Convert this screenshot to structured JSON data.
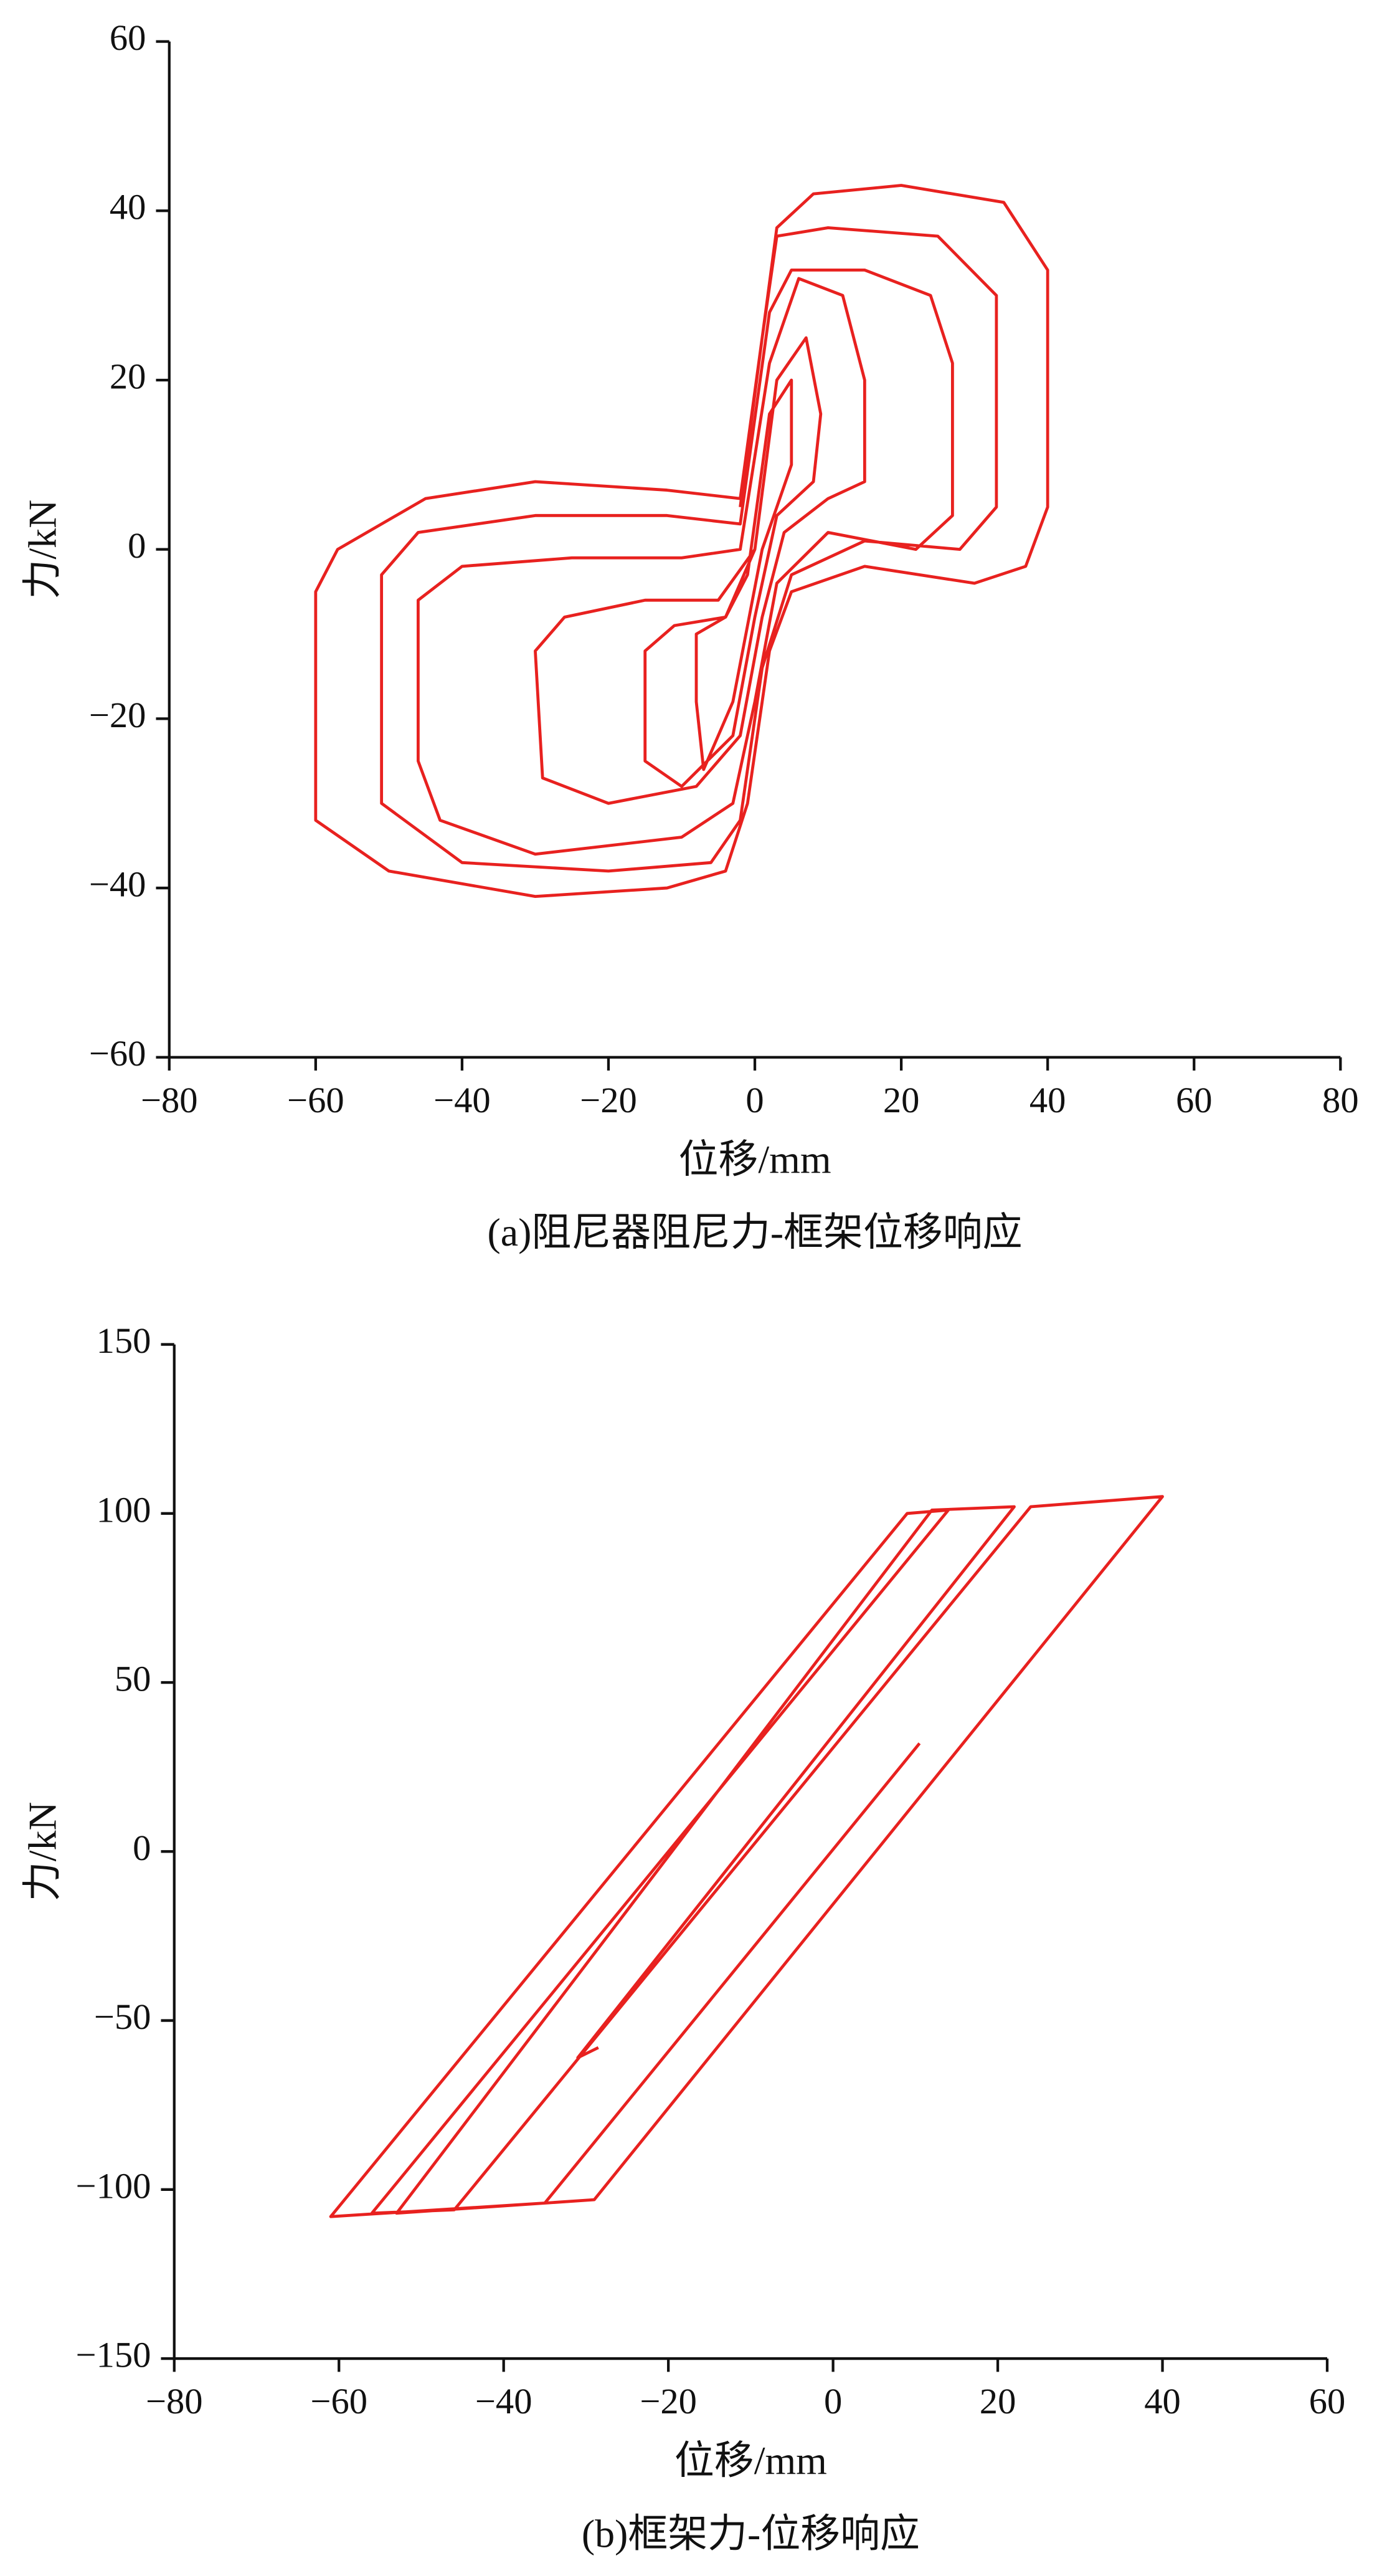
{
  "chart_data": [
    {
      "type": "line",
      "xlabel": "位移/mm",
      "ylabel": "力/kN",
      "caption": "(a)阻尼器阻尼力-框架位移响应",
      "xlim": [
        -80,
        80
      ],
      "ylim": [
        -60,
        60
      ],
      "xticks": [
        {
          "value": -80,
          "label": "−80"
        },
        {
          "value": -60,
          "label": "−60"
        },
        {
          "value": -40,
          "label": "−40"
        },
        {
          "value": -20,
          "label": "−20"
        },
        0,
        20,
        40,
        60,
        80
      ],
      "yticks": [
        {
          "value": -60,
          "label": "−60"
        },
        {
          "value": -40,
          "label": "−40"
        },
        {
          "value": -20,
          "label": "−20"
        },
        0,
        20,
        40,
        60
      ],
      "series": [
        {
          "color": "#e8211f",
          "x": [
            -2,
            1,
            3,
            8,
            20,
            34,
            40,
            40,
            37,
            30,
            15,
            5,
            2,
            -1,
            -4,
            -12,
            -30,
            -50,
            -60,
            -60,
            -57,
            -45,
            -30,
            -12,
            -2,
            1,
            3,
            10,
            25,
            33,
            33,
            28,
            15,
            5,
            1,
            -2,
            -6,
            -20,
            -40,
            -51,
            -51,
            -46,
            -30,
            -12,
            -2,
            2,
            5,
            15,
            24,
            27,
            27,
            22,
            10,
            3,
            0,
            -3,
            -10,
            -30,
            -43,
            -46,
            -46,
            -40,
            -25,
            -10,
            -2,
            2,
            6,
            12,
            15,
            15,
            10,
            4,
            1,
            -2,
            -8,
            -20,
            -29,
            -30,
            -26,
            -15,
            -5,
            0,
            3,
            7,
            9,
            8,
            3,
            0,
            -3,
            -10,
            -15,
            -15,
            -11,
            -4,
            -1,
            2,
            5,
            5,
            1,
            -3,
            -7,
            -8,
            -8,
            -4,
            0
          ],
          "y": [
            5,
            25,
            38,
            42,
            43,
            41,
            33,
            5,
            -2,
            -4,
            -2,
            -5,
            -12,
            -30,
            -38,
            -40,
            -41,
            -38,
            -32,
            -5,
            0,
            6,
            8,
            7,
            6,
            25,
            37,
            38,
            37,
            30,
            5,
            0,
            1,
            -3,
            -14,
            -32,
            -37,
            -38,
            -37,
            -30,
            -3,
            2,
            4,
            4,
            3,
            28,
            33,
            33,
            30,
            22,
            4,
            0,
            2,
            -4,
            -18,
            -30,
            -34,
            -36,
            -32,
            -25,
            -6,
            -2,
            -1,
            -1,
            0,
            22,
            32,
            30,
            20,
            8,
            6,
            2,
            -8,
            -22,
            -28,
            -30,
            -27,
            -12,
            -8,
            -6,
            -6,
            0,
            20,
            25,
            16,
            8,
            4,
            -8,
            -22,
            -28,
            -25,
            -12,
            -9,
            -8,
            -3,
            16,
            20,
            10,
            0,
            -18,
            -26,
            -18,
            -10,
            -8,
            0
          ]
        }
      ]
    },
    {
      "type": "line",
      "xlabel": "位移/mm",
      "ylabel": "力/kN",
      "caption": "(b)框架力-位移响应",
      "xlim": [
        -80,
        60
      ],
      "ylim": [
        -150,
        150
      ],
      "xticks": [
        {
          "value": -80,
          "label": "−80"
        },
        {
          "value": -60,
          "label": "−60"
        },
        {
          "value": -40,
          "label": "−40"
        },
        {
          "value": -20,
          "label": "−20"
        },
        0,
        20,
        40,
        60
      ],
      "yticks": [
        {
          "value": -150,
          "label": "−150"
        },
        {
          "value": -100,
          "label": "−100"
        },
        {
          "value": -50,
          "label": "−50"
        },
        0,
        50,
        100,
        150
      ],
      "series": [
        {
          "color": "#e8211f",
          "x": [
            10.5,
            -35,
            -61,
            9,
            14,
            -56,
            -46,
            24,
            40,
            -29,
            -53,
            12,
            22,
            -31,
            -28.5
          ],
          "y": [
            32,
            -104,
            -108,
            100,
            101,
            -107,
            -106,
            102,
            105,
            -103,
            -107,
            101,
            102,
            -61,
            -58
          ]
        }
      ]
    }
  ]
}
